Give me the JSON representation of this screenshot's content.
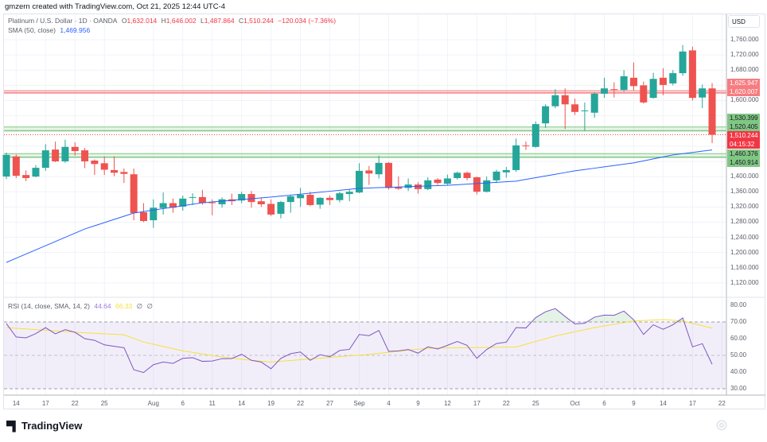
{
  "credit": "gmzern created with TradingView.com, Oct 21, 2025 12:44 UTC-4",
  "legend": {
    "symbol": "Platinum / U.S. Dollar · 1D · OANDA",
    "open_label": "O",
    "open": "1,632.014",
    "high_label": "H",
    "high": "1,646.002",
    "low_label": "L",
    "low": "1,487.864",
    "close_label": "C",
    "close": "1,510.244",
    "change": "−120.034 (−7.36%)",
    "sma_label": "SMA (50, close)",
    "sma_value": "1,469.956",
    "rsi_label": "RSI (14, close, SMA, 14, 2)",
    "rsi_value": "44.64",
    "rsi_sma_value": "66.33",
    "rsi_extra1": "∅",
    "rsi_extra2": "∅"
  },
  "currency": "USD",
  "price_axis": [
    "1,760.000",
    "1,720.000",
    "1,680.000",
    "1,640.000",
    "1,600.000",
    "1,560.000",
    "1,520.000",
    "1,480.000",
    "1,440.000",
    "1,400.000",
    "1,360.000",
    "1,320.000",
    "1,280.000",
    "1,240.000",
    "1,200.000",
    "1,160.000",
    "1,120.000"
  ],
  "price_axis_values": [
    1760,
    1720,
    1680,
    1640,
    1600,
    1560,
    1520,
    1480,
    1440,
    1400,
    1360,
    1320,
    1280,
    1240,
    1200,
    1160,
    1120
  ],
  "rsi_axis": [
    "80.00",
    "70.00",
    "60.00",
    "50.00",
    "40.00",
    "30.00"
  ],
  "rsi_axis_values": [
    80,
    70,
    60,
    50,
    40,
    30
  ],
  "levels": {
    "resistance": {
      "upper": "1,625.947",
      "lower": "1,620.007",
      "values": [
        1625.947,
        1620.007
      ]
    },
    "mid": {
      "upper": "1,530.399",
      "lower": "1,520.405",
      "values": [
        1530.399,
        1520.405
      ]
    },
    "support": {
      "upper": "1,460.376",
      "lower": "1,450.914",
      "values": [
        1460.376,
        1450.914
      ]
    },
    "current": {
      "price": "1,510.244",
      "countdown": "04:15:32",
      "value": 1510.244
    }
  },
  "dates": [
    {
      "label": "14",
      "index": 1
    },
    {
      "label": "17",
      "index": 4
    },
    {
      "label": "22",
      "index": 7
    },
    {
      "label": "25",
      "index": 10
    },
    {
      "label": "Aug",
      "index": 15
    },
    {
      "label": "6",
      "index": 18
    },
    {
      "label": "11",
      "index": 21
    },
    {
      "label": "14",
      "index": 24
    },
    {
      "label": "19",
      "index": 27
    },
    {
      "label": "22",
      "index": 30
    },
    {
      "label": "27",
      "index": 33
    },
    {
      "label": "Sep",
      "index": 36
    },
    {
      "label": "4",
      "index": 39
    },
    {
      "label": "9",
      "index": 42
    },
    {
      "label": "12",
      "index": 45
    },
    {
      "label": "17",
      "index": 48
    },
    {
      "label": "22",
      "index": 51
    },
    {
      "label": "25",
      "index": 54
    },
    {
      "label": "Oct",
      "index": 58
    },
    {
      "label": "6",
      "index": 61
    },
    {
      "label": "9",
      "index": 64
    },
    {
      "label": "14",
      "index": 67
    },
    {
      "label": "17",
      "index": 70
    },
    {
      "label": "22",
      "index": 73
    }
  ],
  "colors": {
    "up": "#26a69a",
    "down": "#ef5350",
    "sma": "#2962ff",
    "rsi": "#7e57c2",
    "rsi_sma": "#f5e13a",
    "resistance": "#f77c80",
    "support": "#81c784"
  },
  "brand": "TradingView",
  "chart_data": {
    "type": "candlestick",
    "ohlc": [
      [
        1400,
        1463,
        1393,
        1457
      ],
      [
        1453,
        1458,
        1396,
        1402
      ],
      [
        1404,
        1416,
        1388,
        1396
      ],
      [
        1400,
        1430,
        1398,
        1423
      ],
      [
        1423,
        1485,
        1415,
        1469
      ],
      [
        1471,
        1492,
        1438,
        1440
      ],
      [
        1440,
        1497,
        1436,
        1478
      ],
      [
        1478,
        1490,
        1455,
        1467
      ],
      [
        1469,
        1475,
        1422,
        1440
      ],
      [
        1442,
        1445,
        1404,
        1433
      ],
      [
        1435,
        1453,
        1404,
        1418
      ],
      [
        1417,
        1453,
        1401,
        1410
      ],
      [
        1412,
        1421,
        1383,
        1407
      ],
      [
        1406,
        1421,
        1285,
        1304
      ],
      [
        1306,
        1330,
        1280,
        1283
      ],
      [
        1285,
        1340,
        1265,
        1318
      ],
      [
        1317,
        1358,
        1300,
        1330
      ],
      [
        1330,
        1342,
        1305,
        1318
      ],
      [
        1321,
        1350,
        1310,
        1342
      ],
      [
        1345,
        1356,
        1325,
        1346
      ],
      [
        1346,
        1365,
        1326,
        1330
      ],
      [
        1332,
        1340,
        1298,
        1331
      ],
      [
        1327,
        1345,
        1318,
        1340
      ],
      [
        1340,
        1355,
        1325,
        1335
      ],
      [
        1337,
        1360,
        1330,
        1354
      ],
      [
        1354,
        1362,
        1318,
        1333
      ],
      [
        1335,
        1345,
        1320,
        1327
      ],
      [
        1328,
        1340,
        1296,
        1300
      ],
      [
        1302,
        1336,
        1290,
        1333
      ],
      [
        1333,
        1352,
        1305,
        1348
      ],
      [
        1343,
        1370,
        1320,
        1352
      ],
      [
        1352,
        1360,
        1322,
        1325
      ],
      [
        1326,
        1346,
        1315,
        1344
      ],
      [
        1344,
        1350,
        1325,
        1338
      ],
      [
        1338,
        1360,
        1332,
        1356
      ],
      [
        1354,
        1366,
        1335,
        1360
      ],
      [
        1358,
        1435,
        1356,
        1415
      ],
      [
        1416,
        1428,
        1378,
        1408
      ],
      [
        1406,
        1455,
        1395,
        1436
      ],
      [
        1436,
        1438,
        1366,
        1370
      ],
      [
        1372,
        1400,
        1365,
        1368
      ],
      [
        1370,
        1395,
        1362,
        1379
      ],
      [
        1379,
        1385,
        1355,
        1367
      ],
      [
        1367,
        1398,
        1364,
        1390
      ],
      [
        1392,
        1396,
        1378,
        1383
      ],
      [
        1381,
        1405,
        1378,
        1395
      ],
      [
        1396,
        1413,
        1392,
        1410
      ],
      [
        1410,
        1413,
        1390,
        1396
      ],
      [
        1398,
        1400,
        1353,
        1360
      ],
      [
        1360,
        1400,
        1358,
        1390
      ],
      [
        1390,
        1418,
        1383,
        1413
      ],
      [
        1411,
        1425,
        1397,
        1417
      ],
      [
        1417,
        1500,
        1412,
        1482
      ],
      [
        1482,
        1492,
        1470,
        1481
      ],
      [
        1478,
        1545,
        1476,
        1538
      ],
      [
        1540,
        1590,
        1528,
        1585
      ],
      [
        1585,
        1630,
        1580,
        1614
      ],
      [
        1614,
        1632,
        1525,
        1590
      ],
      [
        1590,
        1605,
        1562,
        1570
      ],
      [
        1572,
        1595,
        1520,
        1574
      ],
      [
        1568,
        1622,
        1555,
        1618
      ],
      [
        1618,
        1660,
        1607,
        1632
      ],
      [
        1630,
        1648,
        1608,
        1628
      ],
      [
        1628,
        1680,
        1623,
        1664
      ],
      [
        1660,
        1700,
        1627,
        1638
      ],
      [
        1640,
        1650,
        1592,
        1595
      ],
      [
        1607,
        1673,
        1605,
        1657
      ],
      [
        1660,
        1685,
        1614,
        1641
      ],
      [
        1645,
        1680,
        1640,
        1672
      ],
      [
        1672,
        1746,
        1665,
        1729
      ],
      [
        1732,
        1742,
        1600,
        1607
      ],
      [
        1608,
        1642,
        1580,
        1632
      ],
      [
        1632,
        1646,
        1488,
        1510
      ]
    ],
    "sma50": [
      [
        0,
        1174
      ],
      [
        8,
        1262
      ],
      [
        13,
        1304
      ],
      [
        20,
        1331
      ],
      [
        27,
        1346
      ],
      [
        36,
        1369
      ],
      [
        45,
        1377
      ],
      [
        52,
        1388
      ],
      [
        58,
        1415
      ],
      [
        64,
        1436
      ],
      [
        68,
        1457
      ],
      [
        72,
        1470
      ]
    ],
    "rsi": [
      69,
      61,
      60.5,
      63,
      66.6,
      62.9,
      65.4,
      63.8,
      60,
      59,
      56.3,
      55.4,
      54.6,
      41.4,
      39.7,
      44.4,
      46,
      45.2,
      48.2,
      48.6,
      46.4,
      46.6,
      48,
      48.1,
      50.6,
      47,
      46,
      42,
      48.2,
      51,
      52,
      47,
      50.4,
      49.2,
      52.9,
      53.6,
      62.5,
      61.8,
      64.9,
      52.4,
      52.7,
      53.5,
      51.3,
      55.1,
      53.8,
      56,
      58.3,
      56,
      48.2,
      53.5,
      57.1,
      57.9,
      66.6,
      66.4,
      72.6,
      76.1,
      78,
      73.3,
      68.8,
      69.2,
      72.9,
      74.1,
      74,
      76.5,
      71.3,
      62.5,
      68.3,
      65.6,
      68.3,
      72.4,
      55.1,
      57,
      44.64
    ],
    "rsi_sma": [
      [
        0,
        66.6
      ],
      [
        8,
        63.5
      ],
      [
        12,
        62.3
      ],
      [
        14,
        58
      ],
      [
        18,
        52.7
      ],
      [
        22,
        49
      ],
      [
        25,
        47
      ],
      [
        27,
        46
      ],
      [
        37,
        50.6
      ],
      [
        43,
        54.3
      ],
      [
        52,
        55
      ],
      [
        56,
        61.6
      ],
      [
        60,
        66.6
      ],
      [
        64,
        70.6
      ],
      [
        67,
        71.4
      ],
      [
        69,
        70.6
      ],
      [
        72,
        66.3
      ]
    ],
    "price_range": [
      1100,
      1780
    ],
    "rsi_range": [
      25,
      85
    ],
    "rsi_bands": [
      70,
      50,
      30
    ]
  }
}
